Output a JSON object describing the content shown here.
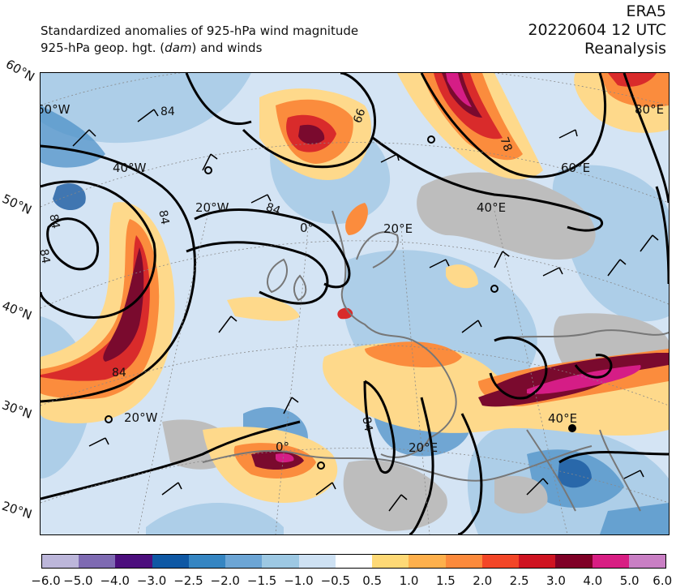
{
  "header": {
    "line1": "Standardized anomalies of 925-hPa wind magnitude",
    "line2_pre": "925-hPa geop. hgt. (",
    "line2_unit": "dam",
    "line2_post": ") and winds",
    "dataset": "ERA5",
    "datetime": "20220604 12 UTC",
    "product": "Reanalysis"
  },
  "map": {
    "lat_labels": [
      "60°N",
      "50°N",
      "40°N",
      "30°N",
      "20°N"
    ],
    "lon_labels": [
      "60°W",
      "40°W",
      "20°W",
      "0°",
      "20°E",
      "40°E",
      "60°E",
      "80°E",
      "20°W",
      "0°",
      "20°E",
      "40°E"
    ],
    "contour_labels": [
      "84",
      "84",
      "84",
      "66",
      "78",
      "84",
      "84",
      "84",
      "84"
    ],
    "colors": {
      "land_gray": "#bdbdbd",
      "coast": "#777777",
      "neg_dark": "#1a5aa0",
      "neg_mid": "#4f92c8",
      "neg_light": "#a9cbe7",
      "neg_pale": "#d4e4f4",
      "pos_yellow": "#fed98b",
      "pos_orange": "#fb8c3d",
      "pos_red": "#d92b2b",
      "pos_dark": "#7a0a2e",
      "pos_magenta": "#d51d86"
    }
  },
  "colorbar": {
    "colors": [
      "#bcb6da",
      "#7e6ab2",
      "#4c0f7d",
      "#0f58a4",
      "#3585c2",
      "#6ca5d5",
      "#9dc8e3",
      "#cee1f3",
      "#ffffff",
      "#fed976",
      "#feb04c",
      "#fc8a3c",
      "#f34627",
      "#cf1421",
      "#7f0026",
      "#d81e83",
      "#c97fc4"
    ],
    "ticks": [
      "−6.0",
      "−5.0",
      "−4.0",
      "−3.0",
      "−2.5",
      "−2.0",
      "−1.5",
      "−1.0",
      "−0.5",
      "0.5",
      "1.0",
      "1.5",
      "2.0",
      "2.5",
      "3.0",
      "4.0",
      "5.0",
      "6.0"
    ]
  }
}
